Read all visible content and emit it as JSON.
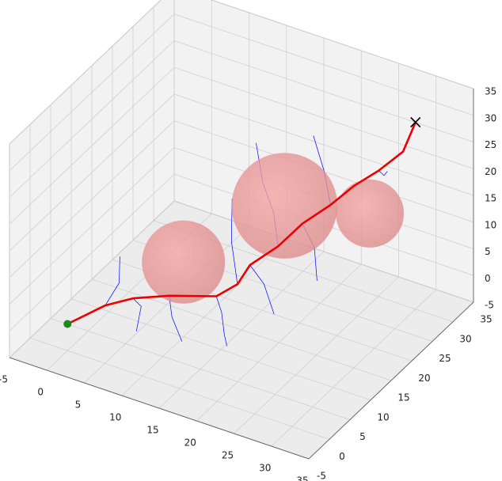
{
  "chart_data": {
    "type": "path3d",
    "xlim": [
      -5,
      35
    ],
    "ylim": [
      -5,
      35
    ],
    "zlim": [
      -5,
      35
    ],
    "xticks": [
      -5,
      0,
      5,
      10,
      15,
      20,
      25,
      30,
      35
    ],
    "yticks": [
      -5,
      0,
      5,
      10,
      15,
      20,
      25,
      30,
      35
    ],
    "zticks": [
      -5,
      0,
      5,
      10,
      15,
      20,
      25,
      30,
      35
    ],
    "grid": true,
    "obstacles": {
      "color": "#f08080",
      "x": [
        10,
        18,
        25
      ],
      "y": [
        10,
        20,
        28
      ],
      "z": [
        9,
        16,
        12
      ],
      "r": [
        5.5,
        7,
        4.5
      ]
    },
    "tree": {
      "color": "#0000ff",
      "branches": [
        {
          "x": [
            1.8,
            2.5,
            1.5
          ],
          "y": [
            5.9,
            8,
            10
          ],
          "z": [
            0,
            3,
            6
          ]
        },
        {
          "x": [
            3.8,
            6,
            7
          ],
          "y": [
            9,
            7,
            4
          ],
          "z": [
            0,
            1,
            -1
          ]
        },
        {
          "x": [
            7.1,
            9,
            12
          ],
          "y": [
            11.8,
            9,
            6
          ],
          "z": [
            0,
            -1,
            -2
          ]
        },
        {
          "x": [
            11.8,
            14,
            16,
            18
          ],
          "y": [
            14.7,
            12,
            9,
            6
          ],
          "z": [
            0,
            0,
            -1,
            0
          ]
        },
        {
          "x": [
            14.3,
            12,
            11
          ],
          "y": [
            15.3,
            18,
            20
          ],
          "z": [
            3,
            8,
            14
          ]
        },
        {
          "x": [
            15.2,
            18,
            21
          ],
          "y": [
            16.7,
            15,
            12
          ],
          "z": [
            6,
            5,
            3
          ]
        },
        {
          "x": [
            17.7,
            16,
            14,
            12
          ],
          "y": [
            19,
            21,
            22,
            24
          ],
          "z": [
            9,
            13,
            17,
            22
          ]
        },
        {
          "x": [
            19.4,
            22,
            24
          ],
          "y": [
            21.8,
            20,
            17
          ],
          "z": [
            12,
            10,
            7
          ]
        },
        {
          "x": [
            21.9,
            20,
            18
          ],
          "y": [
            24.1,
            26,
            27
          ],
          "z": [
            15,
            19,
            24
          ]
        },
        {
          "x": [
            26.4,
            28,
            29
          ],
          "y": [
            27.6,
            26,
            25
          ],
          "z": [
            21,
            22,
            24
          ]
        }
      ]
    },
    "path": {
      "color": "#ee0000",
      "x": [
        0,
        1.8,
        3.8,
        7.1,
        11.8,
        14.3,
        15.2,
        17.7,
        19.4,
        21.9,
        23.9,
        26.4,
        28.5,
        30
      ],
      "y": [
        0,
        5.9,
        9,
        11.8,
        14.7,
        15.3,
        16.7,
        19,
        21.8,
        24.1,
        26.2,
        27.6,
        29.7,
        30
      ],
      "z": [
        0,
        0,
        0,
        0,
        0,
        3,
        6,
        9,
        12,
        15,
        18,
        21,
        24,
        30
      ]
    },
    "start": {
      "color": "#1a8a1a",
      "x": 0,
      "y": 0,
      "z": 0
    },
    "goal": {
      "color": "#000000",
      "x": 30,
      "y": 30,
      "z": 30
    }
  }
}
